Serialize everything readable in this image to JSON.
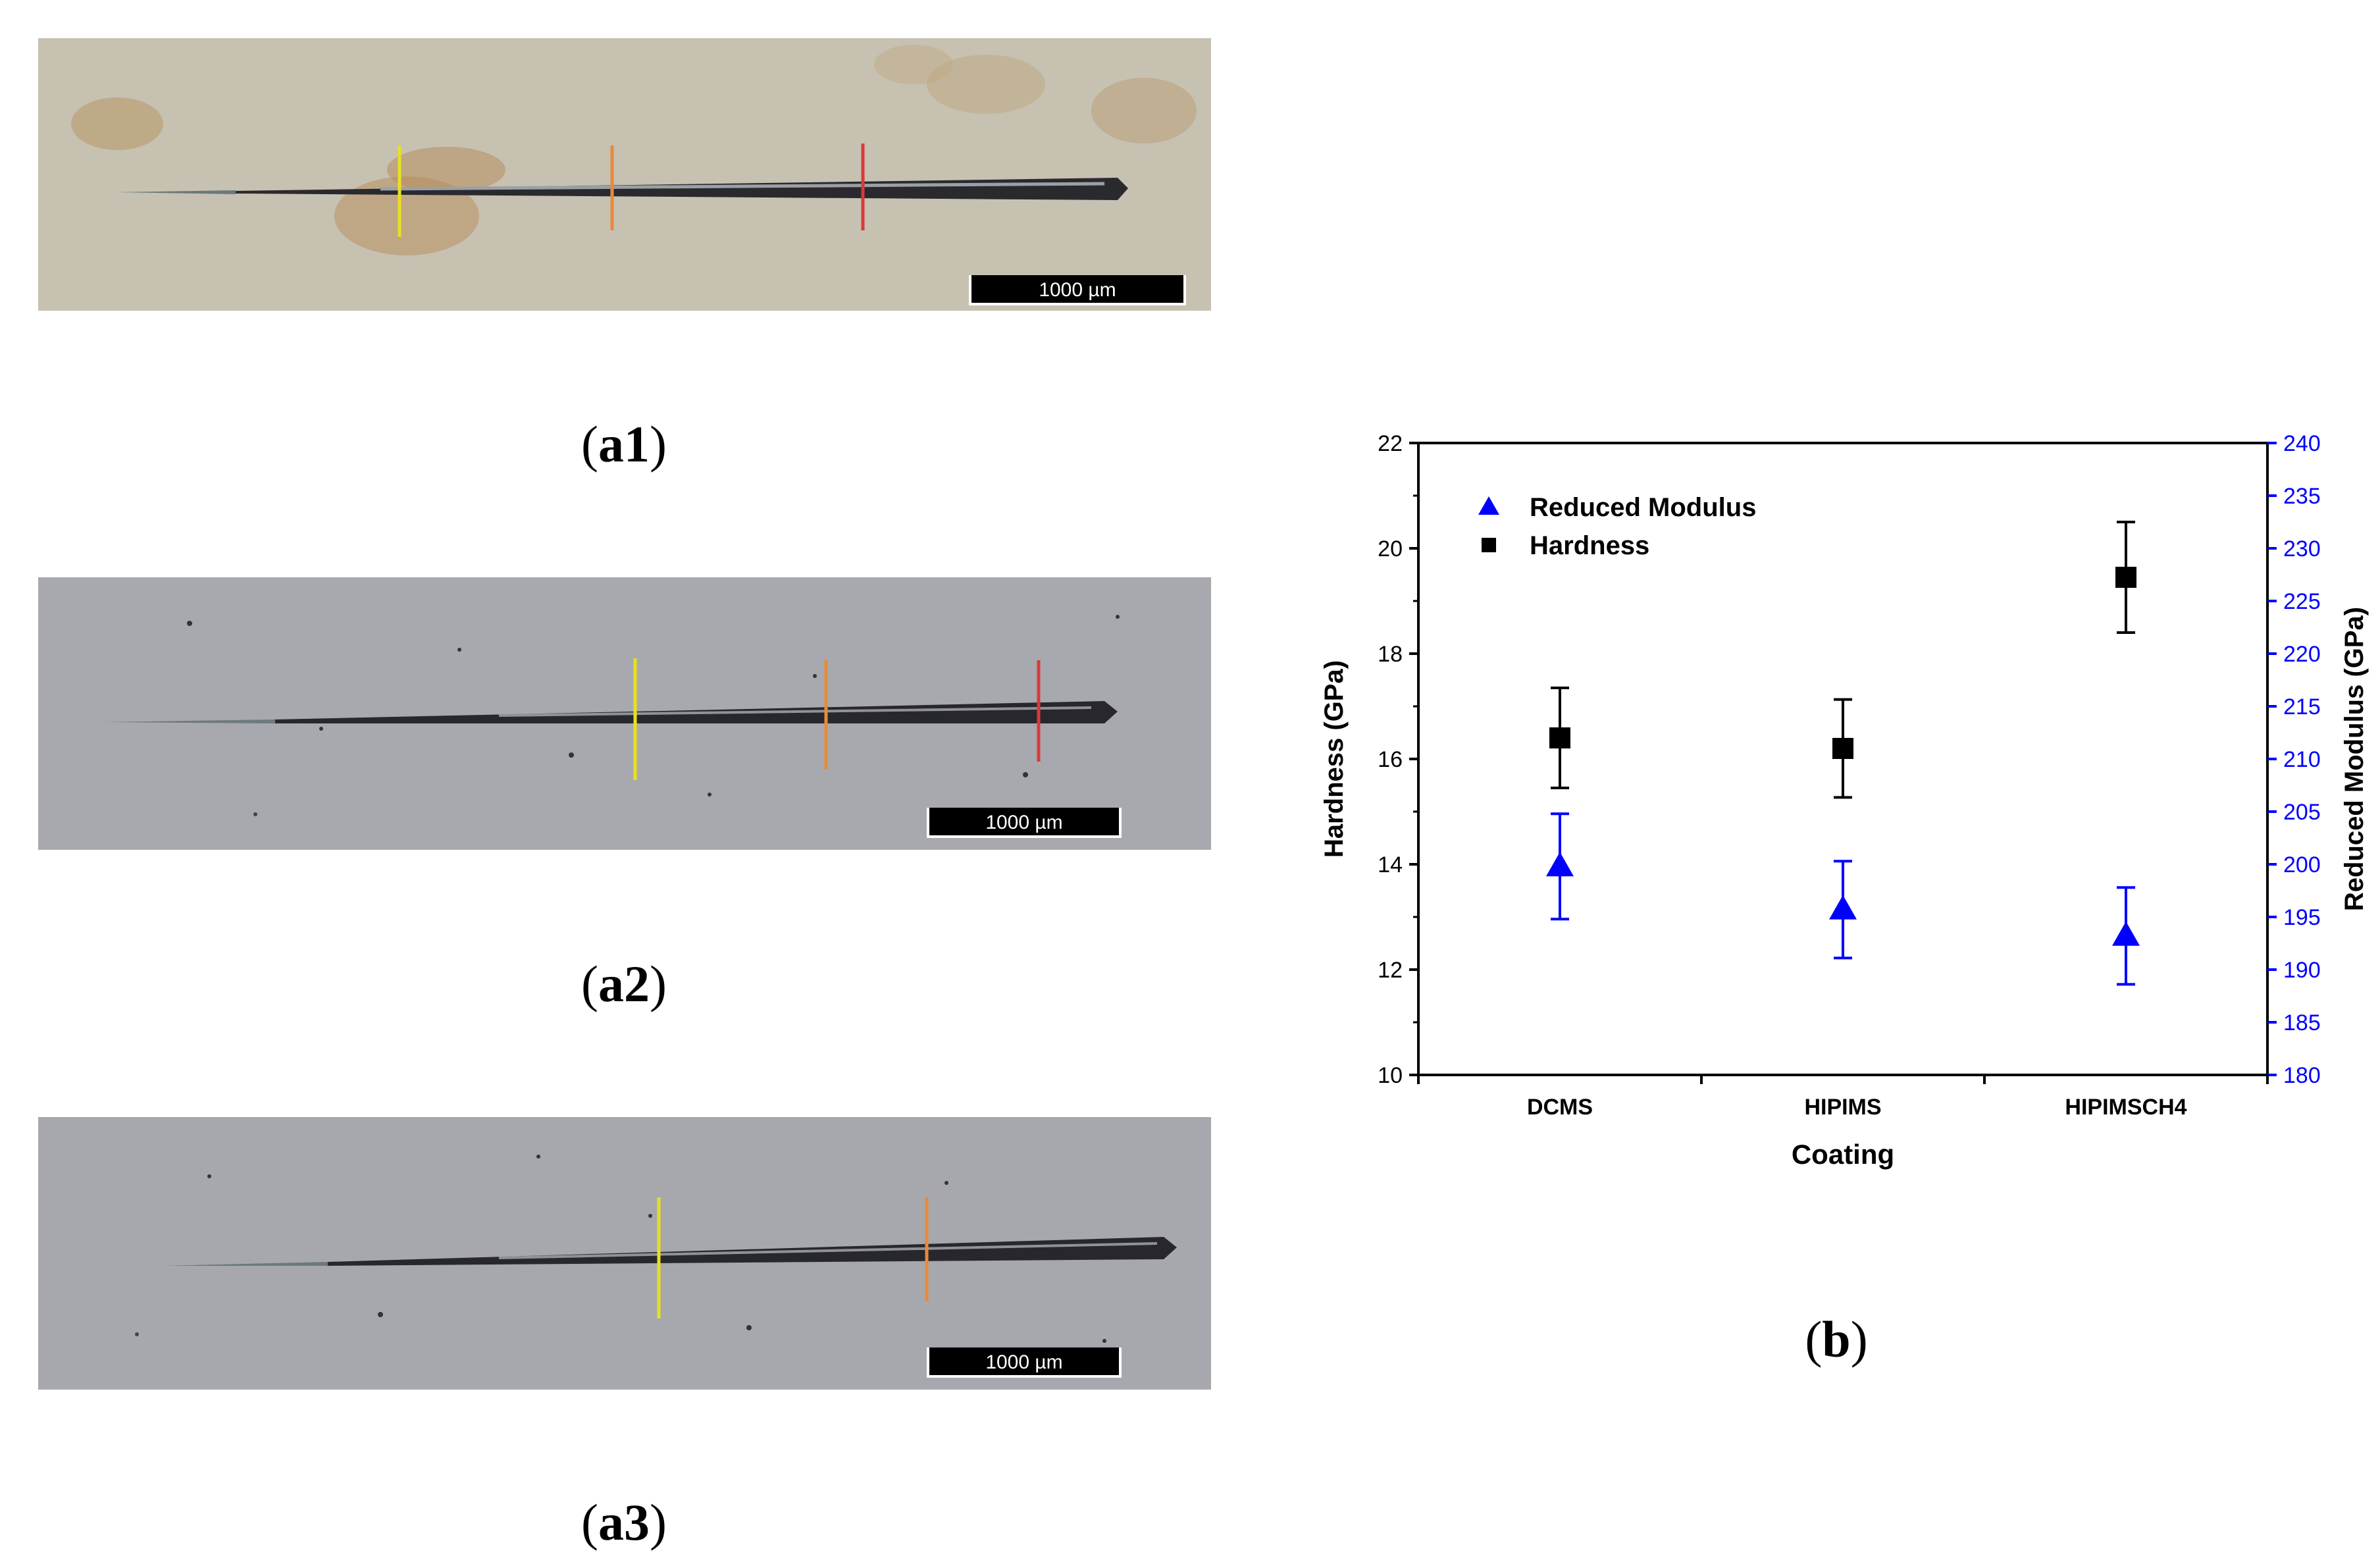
{
  "figure": {
    "panels": [
      {
        "caption_label": "a1",
        "scale_label": "1000 µm",
        "marks": [
          "yellow",
          "orange",
          "red"
        ]
      },
      {
        "caption_label": "a2",
        "scale_label": "1000 µm",
        "marks": [
          "yellow",
          "orange",
          "red"
        ]
      },
      {
        "caption_label": "a3",
        "scale_label": "1000 µm",
        "marks": [
          "yellow",
          "orange"
        ]
      }
    ],
    "chart_caption_label": "b",
    "colors": {
      "hardness": "#000000",
      "modulus": "#0000ff",
      "yellow_mark": "#e8e020",
      "orange_mark": "#e88a3a",
      "red_mark": "#d83a3a"
    }
  },
  "chart_data": {
    "type": "scatter",
    "categories": [
      "DCMS",
      "HIPIMS",
      "HIPIMSCH4"
    ],
    "xlabel": "Coating",
    "ylabel": "Hardness (GPa)",
    "y2label": "Reduced Modulus (GPa)",
    "ylim": [
      10,
      22
    ],
    "y2lim": [
      180,
      240
    ],
    "yticks": [
      "10",
      "12",
      "14",
      "16",
      "18",
      "20",
      "22"
    ],
    "y2ticks": [
      "180",
      "185",
      "190",
      "195",
      "200",
      "205",
      "210",
      "215",
      "220",
      "225",
      "230",
      "235",
      "240"
    ],
    "legend_position": "top-left",
    "series": [
      {
        "name": "Reduced Modulus",
        "axis": "right",
        "marker": "triangle",
        "color": "#0000ff",
        "values": [
          199.8,
          195.7,
          193.2
        ],
        "errors": [
          5.0,
          4.6,
          4.6
        ]
      },
      {
        "name": "Hardness",
        "axis": "left",
        "marker": "square",
        "color": "#000000",
        "values": [
          16.4,
          16.2,
          19.45
        ],
        "errors": [
          0.95,
          0.93,
          1.05
        ]
      }
    ]
  }
}
